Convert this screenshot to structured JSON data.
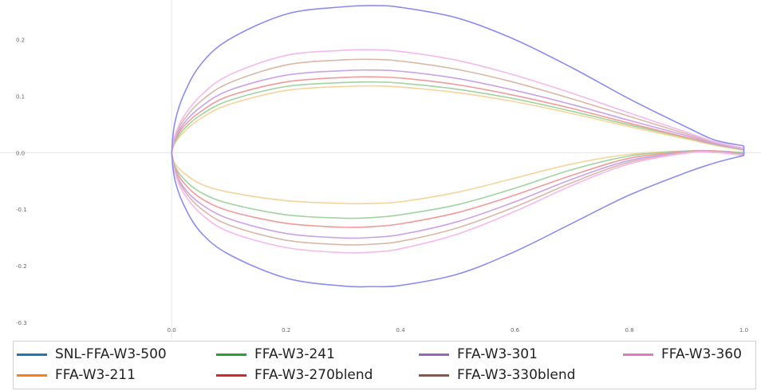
{
  "chart_data": {
    "type": "line",
    "title": "",
    "xlabel": "",
    "ylabel": "",
    "xlim": [
      -0.3,
      1.03
    ],
    "ylim": [
      -0.33,
      0.27
    ],
    "x_ticks": [
      "0.0",
      "0.2",
      "0.4",
      "0.6",
      "0.8",
      "1.0"
    ],
    "y_ticks": [
      "0.2",
      "0.1",
      "0.0",
      "-0.1",
      "-0.2",
      "-0.3"
    ],
    "grid": "zero-lines only",
    "legend_position": "bottom",
    "series": [
      {
        "name": "SNL-FFA-W3-500",
        "legend_color": "#1f77b4",
        "line_color": "#8c8cf0",
        "x": [
          0,
          0.005,
          0.02,
          0.05,
          0.1,
          0.2,
          0.3,
          0.35,
          0.4,
          0.5,
          0.6,
          0.7,
          0.8,
          0.9,
          0.95,
          1.0
        ],
        "upper": [
          0,
          0.05,
          0.1,
          0.155,
          0.2,
          0.245,
          0.258,
          0.26,
          0.257,
          0.238,
          0.2,
          0.15,
          0.095,
          0.045,
          0.022,
          0.012
        ],
        "lower": [
          0,
          -0.045,
          -0.09,
          -0.14,
          -0.18,
          -0.222,
          -0.236,
          -0.237,
          -0.235,
          -0.215,
          -0.175,
          -0.125,
          -0.075,
          -0.035,
          -0.018,
          -0.005
        ]
      },
      {
        "name": "FFA-W3-211",
        "legend_color": "#ff7f0e",
        "line_color": "#f5d49a",
        "x": [
          0,
          0.005,
          0.02,
          0.05,
          0.1,
          0.2,
          0.3,
          0.35,
          0.4,
          0.5,
          0.6,
          0.7,
          0.8,
          0.9,
          0.95,
          1.0
        ],
        "upper": [
          0,
          0.015,
          0.035,
          0.06,
          0.085,
          0.11,
          0.117,
          0.118,
          0.116,
          0.106,
          0.09,
          0.069,
          0.046,
          0.024,
          0.013,
          0.004
        ],
        "lower": [
          0,
          -0.018,
          -0.035,
          -0.055,
          -0.07,
          -0.085,
          -0.09,
          -0.09,
          -0.087,
          -0.07,
          -0.045,
          -0.02,
          -0.003,
          0.003,
          0.003,
          0.0
        ]
      },
      {
        "name": "FFA-W3-241",
        "legend_color": "#2ca02c",
        "line_color": "#9fd49f",
        "x": [
          0,
          0.005,
          0.02,
          0.05,
          0.1,
          0.2,
          0.3,
          0.35,
          0.4,
          0.5,
          0.6,
          0.7,
          0.8,
          0.9,
          0.95,
          1.0
        ],
        "upper": [
          0,
          0.017,
          0.04,
          0.066,
          0.092,
          0.117,
          0.124,
          0.125,
          0.123,
          0.112,
          0.095,
          0.073,
          0.049,
          0.026,
          0.014,
          0.005
        ],
        "lower": [
          0,
          -0.022,
          -0.045,
          -0.07,
          -0.09,
          -0.11,
          -0.116,
          -0.115,
          -0.11,
          -0.092,
          -0.063,
          -0.03,
          -0.006,
          0.003,
          0.003,
          0.0
        ]
      },
      {
        "name": "FFA-W3-270blend",
        "legend_color": "#d62728",
        "line_color": "#f29a9a",
        "x": [
          0,
          0.005,
          0.02,
          0.05,
          0.1,
          0.2,
          0.3,
          0.35,
          0.4,
          0.5,
          0.6,
          0.7,
          0.8,
          0.9,
          0.95,
          1.0
        ],
        "upper": [
          0,
          0.02,
          0.045,
          0.072,
          0.1,
          0.125,
          0.133,
          0.134,
          0.132,
          0.12,
          0.101,
          0.078,
          0.052,
          0.027,
          0.015,
          0.006
        ],
        "lower": [
          0,
          -0.025,
          -0.052,
          -0.08,
          -0.103,
          -0.125,
          -0.132,
          -0.131,
          -0.126,
          -0.106,
          -0.075,
          -0.04,
          -0.01,
          0.002,
          0.003,
          -0.002
        ]
      },
      {
        "name": "FFA-W3-301",
        "legend_color": "#9467bd",
        "line_color": "#c9a3e8",
        "x": [
          0,
          0.005,
          0.02,
          0.05,
          0.1,
          0.2,
          0.3,
          0.35,
          0.4,
          0.5,
          0.6,
          0.7,
          0.8,
          0.9,
          0.95,
          1.0
        ],
        "upper": [
          0,
          0.022,
          0.05,
          0.08,
          0.11,
          0.137,
          0.145,
          0.146,
          0.144,
          0.131,
          0.11,
          0.085,
          0.057,
          0.03,
          0.016,
          0.006
        ],
        "lower": [
          0,
          -0.028,
          -0.06,
          -0.09,
          -0.117,
          -0.143,
          -0.151,
          -0.15,
          -0.145,
          -0.122,
          -0.087,
          -0.047,
          -0.014,
          0.001,
          0.002,
          -0.003
        ]
      },
      {
        "name": "FFA-W3-330blend",
        "legend_color": "#8c564b",
        "line_color": "#d9b8a8",
        "x": [
          0,
          0.005,
          0.02,
          0.05,
          0.1,
          0.2,
          0.3,
          0.35,
          0.4,
          0.5,
          0.6,
          0.7,
          0.8,
          0.9,
          0.95,
          1.0
        ],
        "upper": [
          0,
          0.025,
          0.056,
          0.09,
          0.123,
          0.155,
          0.164,
          0.165,
          0.162,
          0.147,
          0.124,
          0.095,
          0.064,
          0.033,
          0.018,
          0.007
        ],
        "lower": [
          0,
          -0.03,
          -0.064,
          -0.098,
          -0.128,
          -0.155,
          -0.163,
          -0.162,
          -0.157,
          -0.133,
          -0.096,
          -0.053,
          -0.017,
          0.0,
          0.001,
          -0.004
        ]
      },
      {
        "name": "FFA-W3-360",
        "legend_color": "#e377c2",
        "line_color": "#f5b8ee",
        "x": [
          0,
          0.005,
          0.02,
          0.05,
          0.1,
          0.2,
          0.3,
          0.35,
          0.4,
          0.5,
          0.6,
          0.7,
          0.8,
          0.9,
          0.95,
          1.0
        ],
        "upper": [
          0,
          0.028,
          0.062,
          0.1,
          0.137,
          0.172,
          0.181,
          0.182,
          0.179,
          0.163,
          0.137,
          0.105,
          0.07,
          0.036,
          0.019,
          0.008
        ],
        "lower": [
          0,
          -0.033,
          -0.07,
          -0.107,
          -0.14,
          -0.168,
          -0.177,
          -0.176,
          -0.17,
          -0.144,
          -0.104,
          -0.058,
          -0.02,
          -0.001,
          0.0,
          -0.005
        ]
      }
    ]
  },
  "legend": {
    "items": [
      {
        "label": "SNL-FFA-W3-500",
        "color": "#1f77b4"
      },
      {
        "label": "FFA-W3-241",
        "color": "#2ca02c"
      },
      {
        "label": "FFA-W3-301",
        "color": "#9467bd"
      },
      {
        "label": "FFA-W3-360",
        "color": "#e377c2"
      },
      {
        "label": "FFA-W3-211",
        "color": "#ff7f0e"
      },
      {
        "label": "FFA-W3-270blend",
        "color": "#d62728"
      },
      {
        "label": "FFA-W3-330blend",
        "color": "#8c564b"
      }
    ]
  }
}
